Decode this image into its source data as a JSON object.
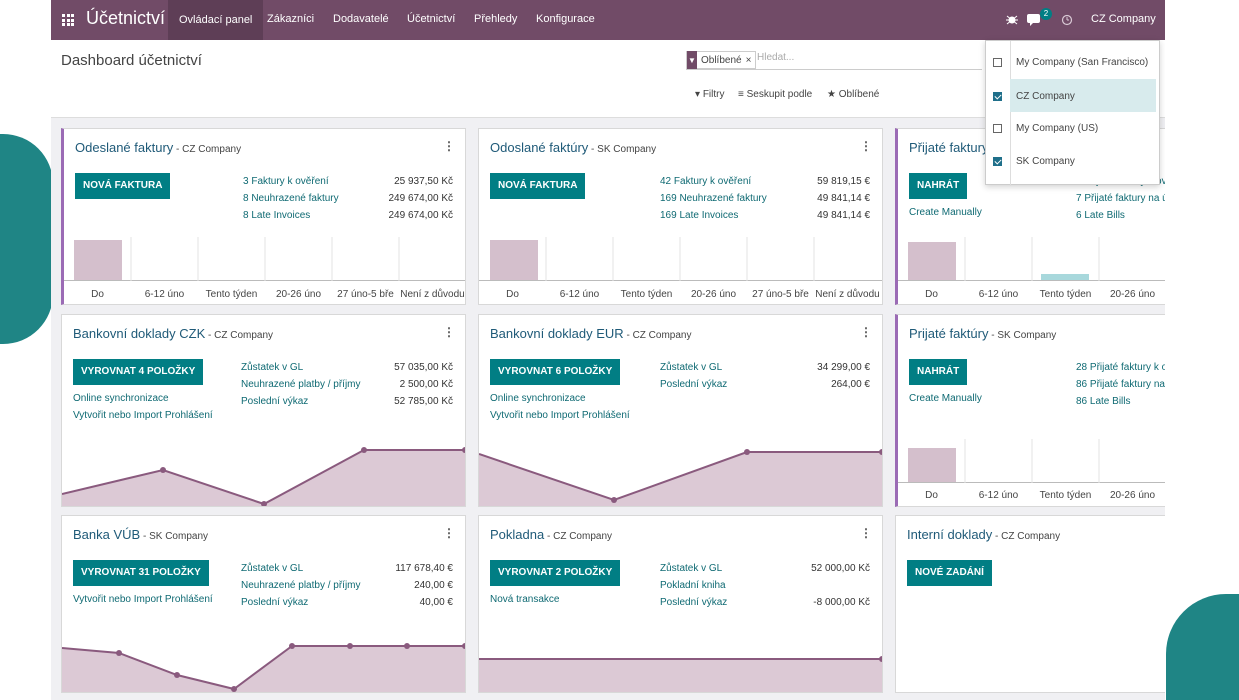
{
  "app": {
    "name": "Účetnictví",
    "nav": [
      "Ovládací panel",
      "Zákazníci",
      "Dodavatelé",
      "Účetnictví",
      "Přehledy",
      "Konfigurace"
    ],
    "message_count": "2",
    "company": "CZ Company"
  },
  "control": {
    "title": "Dashboard účetnictví",
    "facet": "Oblíbené",
    "search_placeholder": "Hledat...",
    "filters": "Filtry",
    "group_by": "Seskupit podle",
    "favorites": "Oblíbené"
  },
  "company_switcher": {
    "items": [
      {
        "label": "My Company (San Francisco)",
        "checked": false
      },
      {
        "label": "CZ Company",
        "checked": true
      },
      {
        "label": "My Company (US)",
        "checked": false
      },
      {
        "label": "SK Company",
        "checked": true
      }
    ]
  },
  "cards": {
    "inv_cz": {
      "title": "Odeslané faktury",
      "company": " - CZ Company",
      "button": "NOVÁ FAKTURA",
      "rows": [
        {
          "label": "3 Faktury k ověření",
          "amount": "25 937,50 Kč"
        },
        {
          "label": "8 Neuhrazené faktury",
          "amount": "249 674,00 Kč"
        },
        {
          "label": "8 Late Invoices",
          "amount": "249 674,00 Kč"
        }
      ],
      "bars": [
        "Do",
        "6-12 úno",
        "Tento týden",
        "20-26 úno",
        "27 úno-5 bře",
        "Není z důvodu"
      ]
    },
    "inv_sk": {
      "title": "Odoslané faktúry",
      "company": " - SK Company",
      "button": "NOVÁ FAKTURA",
      "rows": [
        {
          "label": "42 Faktury k ověření",
          "amount": "59 819,15 €"
        },
        {
          "label": "169 Neuhrazené faktury",
          "amount": "49 841,14 €"
        },
        {
          "label": "169 Late Invoices",
          "amount": "49 841,14 €"
        }
      ],
      "bars": [
        "Do",
        "6-12 úno",
        "Tento týden",
        "20-26 úno",
        "27 úno-5 bře",
        "Není z důvodu"
      ]
    },
    "bills_cz": {
      "title": "Přijaté faktury",
      "button": "NAHRÁT",
      "extra": "Create Manually",
      "rows": [
        "7 Přijaté faktury k ov",
        "7 Přijaté faktury na ú",
        "6 Late Bills"
      ],
      "bars": [
        "Do",
        "6-12 úno",
        "Tento týden",
        "20-26 úno"
      ]
    },
    "bank_czk": {
      "title": "Bankovní doklady CZK",
      "company": " - CZ Company",
      "button": "VYROVNAT 4 POLOŽKY",
      "links": [
        "Online synchronizace",
        "Vytvořit nebo Import Prohlášení"
      ],
      "rows": [
        {
          "label": "Zůstatek v GL",
          "amount": "57 035,00 Kč"
        },
        {
          "label": "Neuhrazené platby / příjmy",
          "amount": "2 500,00 Kč"
        },
        {
          "label": "Poslední výkaz",
          "amount": "52 785,00 Kč"
        }
      ]
    },
    "bank_eur": {
      "title": "Bankovní doklady EUR",
      "company": " - CZ Company",
      "button": "VYROVNAT 6 POLOŽKY",
      "links": [
        "Online synchronizace",
        "Vytvořit nebo Import Prohlášení"
      ],
      "rows": [
        {
          "label": "Zůstatek v GL",
          "amount": "34 299,00 €"
        },
        {
          "label": "Poslední výkaz",
          "amount": "264,00 €"
        }
      ]
    },
    "bills_sk": {
      "title": "Prijaté faktúry",
      "company": " - SK Company",
      "button": "NAHRÁT",
      "extra": "Create Manually",
      "rows": [
        "28 Přijaté faktury k o",
        "86 Přijaté faktury na",
        "86 Late Bills"
      ],
      "bars": [
        "Do",
        "6-12 úno",
        "Tento týden",
        "20-26 úno"
      ]
    },
    "bank_vub": {
      "title": "Banka VÚB",
      "company": " - SK Company",
      "button": "VYROVNAT 31 POLOŽKY",
      "links": [
        "Vytvořit nebo Import Prohlášení"
      ],
      "rows": [
        {
          "label": "Zůstatek v GL",
          "amount": "117 678,40 €"
        },
        {
          "label": "Neuhrazené platby / příjmy",
          "amount": "240,00 €"
        },
        {
          "label": "Poslední výkaz",
          "amount": "40,00 €"
        }
      ]
    },
    "cash": {
      "title": "Pokladna",
      "company": " - CZ Company",
      "button": "VYROVNAT 2 POLOŽKY",
      "links": [
        "Nová transakce"
      ],
      "rows": [
        {
          "label": "Zůstatek v GL",
          "amount": "52 000,00 Kč"
        },
        {
          "label": "Pokladní kniha",
          "amount": ""
        },
        {
          "label": "Poslední výkaz",
          "amount": "-8 000,00 Kč"
        }
      ]
    },
    "misc": {
      "title": "Interní doklady",
      "company": " - CZ Company",
      "button": "NOVÉ ZADÁNÍ"
    }
  },
  "colors": {
    "navbar": "#714b67",
    "primary": "#017e84",
    "accent_border": "#9b6bb5",
    "bar_past": "#d4bfcc",
    "bar_current": "#a8d8dc",
    "line_stroke": "#8a5a7e",
    "line_fill": "#dcc9d5",
    "decor_teal": "#1f8585"
  }
}
